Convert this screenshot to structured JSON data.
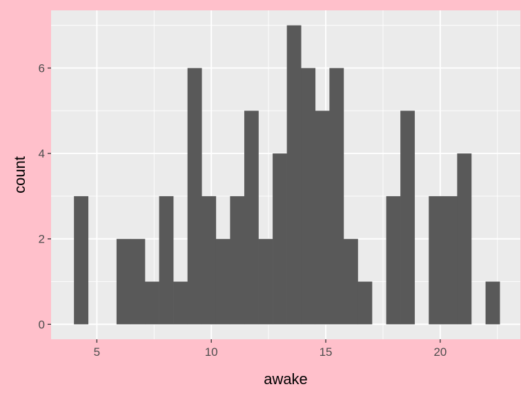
{
  "chart_data": {
    "type": "bar",
    "subtype": "histogram",
    "xlabel": "awake",
    "ylabel": "count",
    "xlim": [
      3,
      23.5
    ],
    "ylim": [
      -0.35,
      7.35
    ],
    "x_ticks": [
      5,
      10,
      15,
      20
    ],
    "x_tick_labels": [
      "5",
      "10",
      "15",
      "20"
    ],
    "y_ticks": [
      0,
      2,
      4,
      6
    ],
    "y_tick_labels": [
      "0",
      "2",
      "4",
      "6"
    ],
    "bin_width": 0.62,
    "bins": [
      {
        "x_start": 4.0,
        "count": 3
      },
      {
        "x_start": 4.62,
        "count": 0
      },
      {
        "x_start": 5.24,
        "count": 0
      },
      {
        "x_start": 5.86,
        "count": 2
      },
      {
        "x_start": 6.48,
        "count": 2
      },
      {
        "x_start": 7.1,
        "count": 1
      },
      {
        "x_start": 7.72,
        "count": 3
      },
      {
        "x_start": 8.34,
        "count": 1
      },
      {
        "x_start": 8.96,
        "count": 6
      },
      {
        "x_start": 9.58,
        "count": 3
      },
      {
        "x_start": 10.2,
        "count": 2
      },
      {
        "x_start": 10.82,
        "count": 3
      },
      {
        "x_start": 11.44,
        "count": 5
      },
      {
        "x_start": 12.06,
        "count": 2
      },
      {
        "x_start": 12.68,
        "count": 4
      },
      {
        "x_start": 13.3,
        "count": 7
      },
      {
        "x_start": 13.92,
        "count": 6
      },
      {
        "x_start": 14.54,
        "count": 5
      },
      {
        "x_start": 15.16,
        "count": 6
      },
      {
        "x_start": 15.78,
        "count": 2
      },
      {
        "x_start": 16.4,
        "count": 1
      },
      {
        "x_start": 17.02,
        "count": 0
      },
      {
        "x_start": 17.64,
        "count": 3
      },
      {
        "x_start": 18.26,
        "count": 5
      },
      {
        "x_start": 18.88,
        "count": 0
      },
      {
        "x_start": 19.5,
        "count": 3
      },
      {
        "x_start": 20.12,
        "count": 3
      },
      {
        "x_start": 20.74,
        "count": 4
      },
      {
        "x_start": 21.36,
        "count": 0
      },
      {
        "x_start": 21.98,
        "count": 1
      }
    ],
    "grid": true,
    "legend": "none"
  },
  "colors": {
    "page_background": "#ffc0cb",
    "panel_background": "#ebebeb",
    "grid_major": "#ffffff",
    "bar_fill": "#595959",
    "tick_mark": "#333333",
    "tick_label": "#4d4d4d",
    "axis_title": "#000000"
  }
}
